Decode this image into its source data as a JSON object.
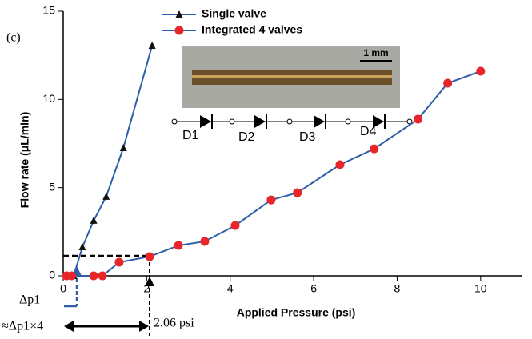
{
  "chart_data": {
    "type": "line",
    "panel_label": "(c)",
    "xlabel": "Applied Pressure (psi)",
    "ylabel": "Flow rate (μL/min)",
    "xlim": [
      0,
      11
    ],
    "xticks": [
      0,
      2,
      4,
      6,
      8,
      10
    ],
    "ylim": [
      0,
      15
    ],
    "yticks": [
      0,
      5,
      10,
      15
    ],
    "legend": "top",
    "series": [
      {
        "name": "Single valve",
        "color": "#2e5ea8",
        "marker": "triangle",
        "marker_color": "#111111",
        "x": [
          0.25,
          0.46,
          0.73,
          1.03,
          1.44,
          2.13
        ],
        "values": [
          0,
          1.63,
          3.13,
          4.49,
          7.25,
          13.05
        ]
      },
      {
        "name": "Integrated 4 valves",
        "color": "#2e5ea8",
        "marker": "circle",
        "marker_color": "#e8262a",
        "x": [
          0.08,
          0.2,
          0.73,
          0.94,
          1.34,
          2.07,
          2.76,
          3.39,
          4.12,
          4.98,
          5.61,
          6.63,
          7.45,
          8.5,
          9.21,
          10.0
        ],
        "values": [
          0,
          0,
          0,
          0,
          0.77,
          1.09,
          1.72,
          1.95,
          2.85,
          4.3,
          4.71,
          6.3,
          7.2,
          8.88,
          10.92,
          11.6
        ]
      }
    ],
    "inset": {
      "scale_label": "1 mm",
      "diodes": [
        "D1",
        "D2",
        "D3",
        "D4"
      ]
    },
    "annotations": [
      "Δp1",
      "≈Δp1×4",
      "2.06 psi"
    ]
  }
}
